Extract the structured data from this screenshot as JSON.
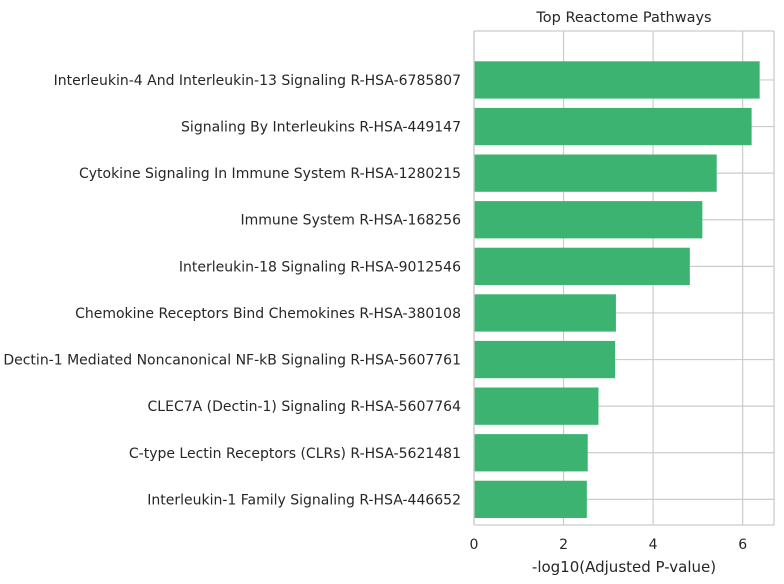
{
  "chart_data": {
    "type": "bar",
    "orientation": "horizontal",
    "title": "Top Reactome Pathways",
    "xlabel": "-log10(Adjusted P-value)",
    "ylabel": "",
    "xlim": [
      0,
      6.7
    ],
    "xticks": [
      0,
      2,
      4,
      6
    ],
    "grid": true,
    "bar_color": "#3cb371",
    "categories": [
      "Interleukin-4 And Interleukin-13 Signaling R-HSA-6785807",
      "Signaling By Interleukins R-HSA-449147",
      "Cytokine Signaling In Immune System R-HSA-1280215",
      "Immune System R-HSA-168256",
      "Interleukin-18 Signaling R-HSA-9012546",
      "Chemokine Receptors Bind Chemokines R-HSA-380108",
      "Dectin-1 Mediated Noncanonical NF-kB Signaling R-HSA-5607761",
      "CLEC7A (Dectin-1) Signaling R-HSA-5607764",
      "C-type Lectin Receptors (CLRs) R-HSA-5621481",
      "Interleukin-1 Family Signaling R-HSA-446652"
    ],
    "values": [
      6.38,
      6.2,
      5.42,
      5.1,
      4.82,
      3.17,
      3.15,
      2.78,
      2.54,
      2.52
    ]
  }
}
